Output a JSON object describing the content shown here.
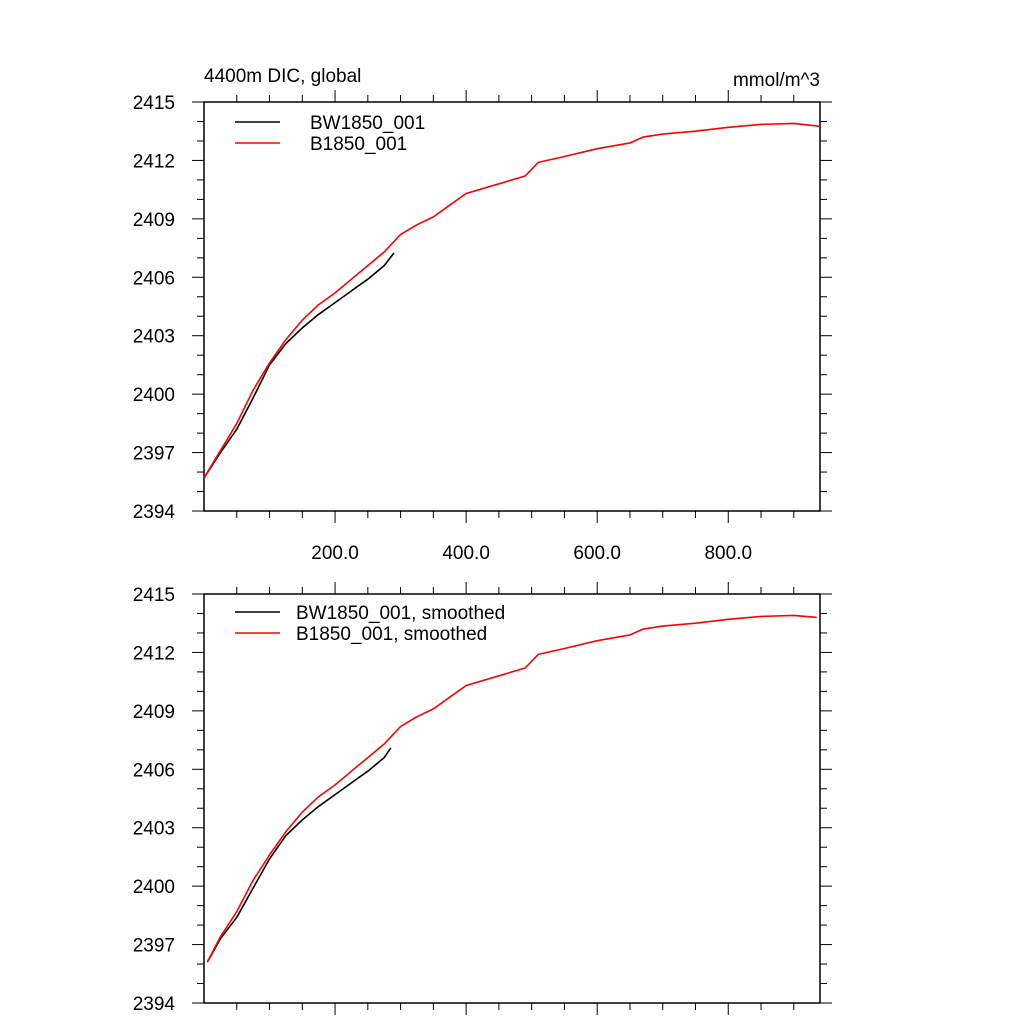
{
  "chart_data": [
    {
      "type": "line",
      "title": "4400m DIC, global",
      "units": "mmol/m^3",
      "xlim": [
        0,
        940
      ],
      "ylim": [
        2394,
        2415
      ],
      "x_tick_labels": [
        "200.0",
        "400.0",
        "600.0",
        "800.0"
      ],
      "x_ticks": [
        200,
        400,
        600,
        800
      ],
      "y_tick_labels": [
        "2394",
        "2397",
        "2400",
        "2403",
        "2406",
        "2409",
        "2412",
        "2415"
      ],
      "y_ticks": [
        2394,
        2397,
        2400,
        2403,
        2406,
        2409,
        2412,
        2415
      ],
      "legend": "top-left",
      "series": [
        {
          "name": "BW1850_001",
          "color": "#000000",
          "x": [
            0,
            25,
            50,
            75,
            100,
            125,
            150,
            175,
            200,
            225,
            250,
            275,
            290
          ],
          "y": [
            2395.7,
            2397.0,
            2398.2,
            2399.8,
            2401.5,
            2402.6,
            2403.4,
            2404.1,
            2404.7,
            2405.3,
            2405.9,
            2406.6,
            2407.25
          ]
        },
        {
          "name": "B1850_001",
          "color": "#ff0000",
          "x": [
            0,
            25,
            50,
            75,
            100,
            125,
            150,
            175,
            200,
            225,
            250,
            275,
            300,
            325,
            350,
            375,
            400,
            450,
            490,
            510,
            550,
            600,
            650,
            670,
            700,
            750,
            800,
            850,
            900,
            940
          ],
          "y": [
            2395.7,
            2397.1,
            2398.5,
            2400.2,
            2401.6,
            2402.8,
            2403.8,
            2404.6,
            2405.2,
            2405.9,
            2406.6,
            2407.3,
            2408.2,
            2408.7,
            2409.1,
            2409.7,
            2410.3,
            2410.8,
            2411.2,
            2411.9,
            2412.2,
            2412.6,
            2412.9,
            2413.2,
            2413.35,
            2413.5,
            2413.7,
            2413.85,
            2413.9,
            2413.75
          ]
        }
      ]
    },
    {
      "type": "line",
      "xlim": [
        0,
        940
      ],
      "ylim": [
        2394,
        2415
      ],
      "x_ticks": [
        200,
        400,
        600,
        800
      ],
      "y_tick_labels": [
        "2394",
        "2397",
        "2400",
        "2403",
        "2406",
        "2409",
        "2412",
        "2415"
      ],
      "y_ticks": [
        2394,
        2397,
        2400,
        2403,
        2406,
        2409,
        2412,
        2415
      ],
      "legend": "top-left",
      "series": [
        {
          "name": "BW1850_001, smoothed",
          "color": "#000000",
          "x": [
            5,
            25,
            50,
            75,
            100,
            125,
            150,
            175,
            200,
            225,
            250,
            275,
            285
          ],
          "y": [
            2396.1,
            2397.3,
            2398.4,
            2399.9,
            2401.4,
            2402.6,
            2403.4,
            2404.1,
            2404.7,
            2405.3,
            2405.9,
            2406.6,
            2407.1
          ]
        },
        {
          "name": "B1850_001, smoothed",
          "color": "#ff0000",
          "x": [
            5,
            25,
            50,
            75,
            100,
            125,
            150,
            175,
            200,
            225,
            250,
            275,
            300,
            325,
            350,
            375,
            400,
            450,
            490,
            510,
            550,
            600,
            650,
            670,
            700,
            750,
            800,
            850,
            900,
            935
          ],
          "y": [
            2396.1,
            2397.4,
            2398.7,
            2400.3,
            2401.6,
            2402.8,
            2403.8,
            2404.6,
            2405.2,
            2405.9,
            2406.6,
            2407.3,
            2408.2,
            2408.7,
            2409.1,
            2409.7,
            2410.3,
            2410.8,
            2411.2,
            2411.9,
            2412.2,
            2412.6,
            2412.9,
            2413.2,
            2413.35,
            2413.5,
            2413.7,
            2413.85,
            2413.9,
            2413.8
          ]
        }
      ]
    }
  ]
}
